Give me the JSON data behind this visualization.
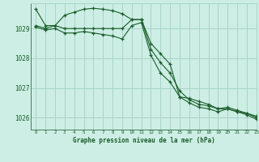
{
  "title": "Graphe pression niveau de la mer (hPa)",
  "background_color": "#cceee4",
  "grid_color": "#aad4c8",
  "line_color": "#1a5c2a",
  "xlim": [
    -0.5,
    23
  ],
  "ylim": [
    1025.6,
    1029.85
  ],
  "yticks": [
    1026,
    1027,
    1028,
    1029
  ],
  "xticks": [
    0,
    1,
    2,
    3,
    4,
    5,
    6,
    7,
    8,
    9,
    10,
    11,
    12,
    13,
    14,
    15,
    16,
    17,
    18,
    19,
    20,
    21,
    22,
    23
  ],
  "series": [
    [
      1029.65,
      1029.1,
      1029.1,
      1029.45,
      1029.55,
      1029.65,
      1029.68,
      1029.65,
      1029.6,
      1029.5,
      1029.3,
      1029.3,
      1028.5,
      1028.15,
      1027.8,
      1026.7,
      1026.65,
      1026.55,
      1026.45,
      1026.3,
      1026.35,
      1026.25,
      1026.15,
      1026.0
    ],
    [
      1029.1,
      1029.0,
      1029.1,
      1029.0,
      1029.0,
      1029.0,
      1029.0,
      1029.0,
      1029.0,
      1029.0,
      1029.3,
      1029.3,
      1028.3,
      1027.85,
      1027.5,
      1026.9,
      1026.6,
      1026.45,
      1026.4,
      1026.3,
      1026.3,
      1026.2,
      1026.15,
      1026.05
    ],
    [
      1029.05,
      1028.95,
      1029.0,
      1028.85,
      1028.85,
      1028.9,
      1028.85,
      1028.8,
      1028.75,
      1028.65,
      1029.1,
      1029.2,
      1028.1,
      1027.5,
      1027.2,
      1026.7,
      1026.5,
      1026.35,
      1026.3,
      1026.2,
      1026.3,
      1026.2,
      1026.1,
      1025.95
    ]
  ]
}
